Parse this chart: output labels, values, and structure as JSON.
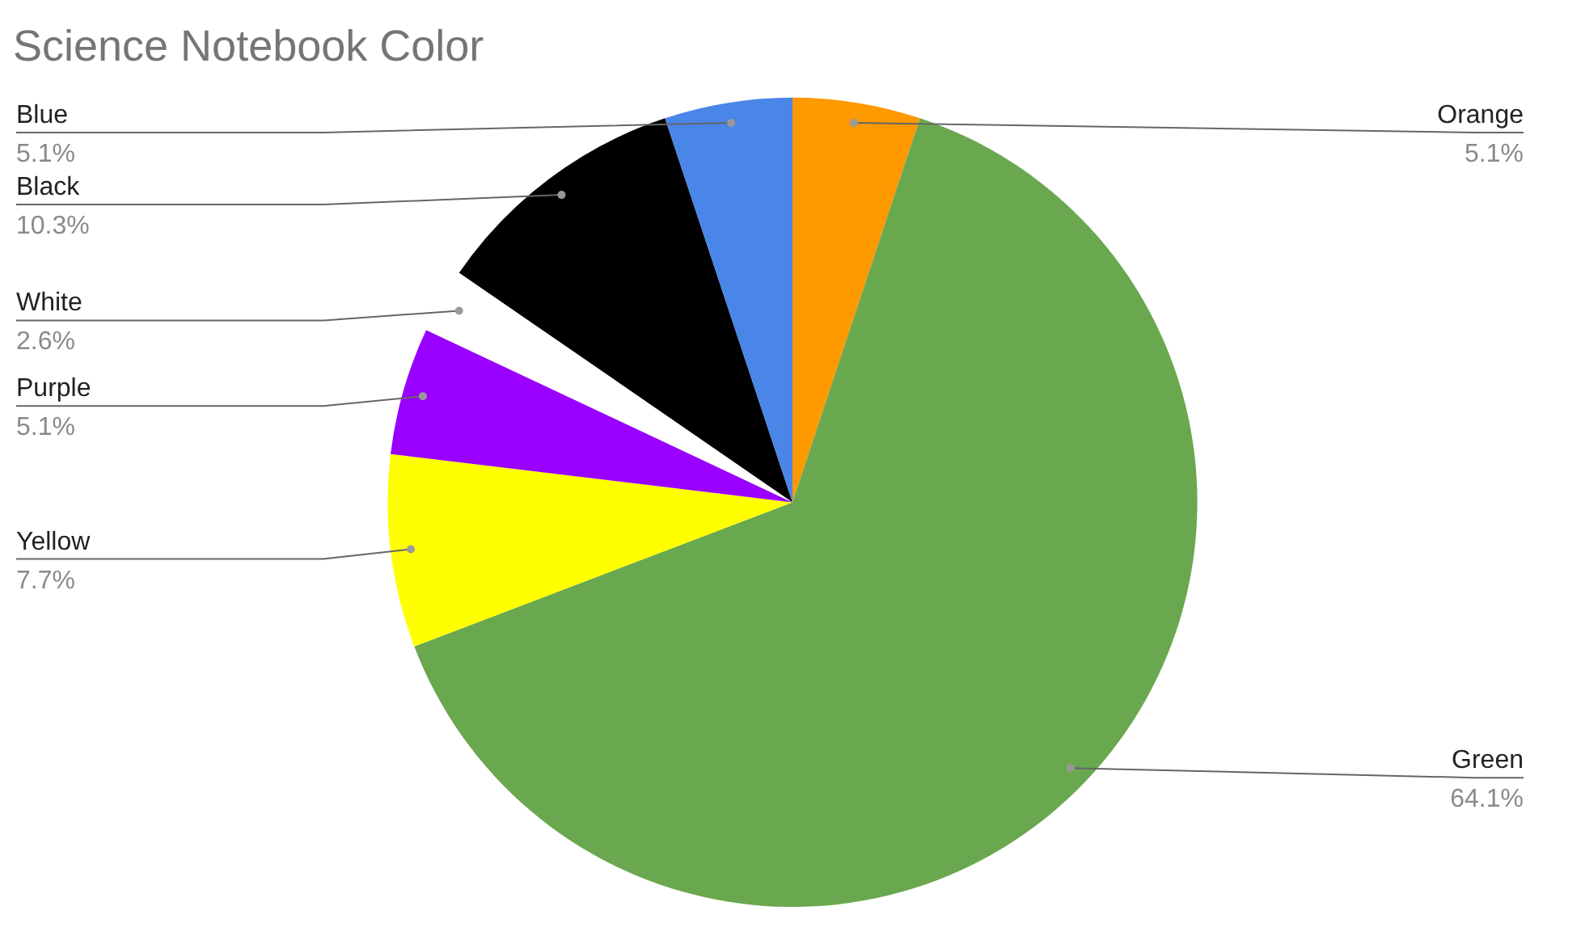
{
  "chart_data": {
    "type": "pie",
    "title": "Science Notebook Color",
    "categories": [
      "Orange",
      "Green",
      "Yellow",
      "Purple",
      "White",
      "Black",
      "Blue"
    ],
    "values": [
      5.1,
      64.1,
      7.7,
      5.1,
      2.6,
      10.3,
      5.1
    ],
    "colors": [
      "#ff9900",
      "#6aa84f",
      "#ffff00",
      "#9900ff",
      "#ffffff",
      "#000000",
      "#4a86e8"
    ],
    "value_labels": [
      "5.1%",
      "64.1%",
      "7.7%",
      "5.1%",
      "2.6%",
      "10.3%",
      "5.1%"
    ],
    "legend": false
  }
}
